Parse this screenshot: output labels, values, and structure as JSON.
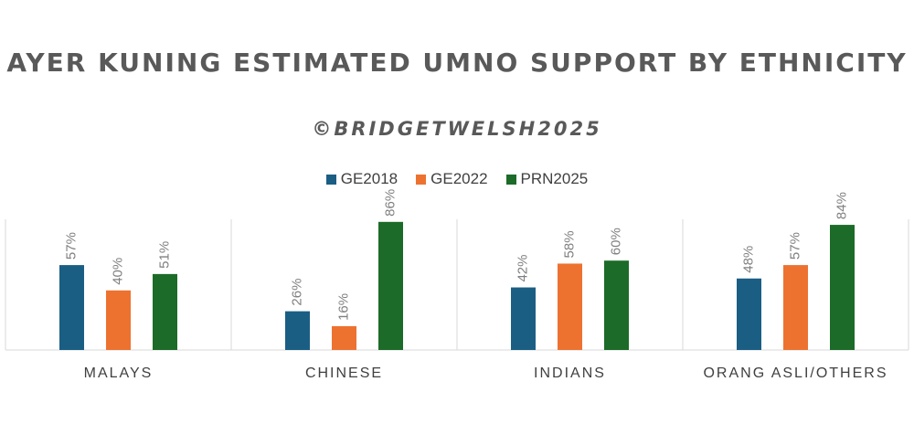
{
  "chart_data": {
    "type": "bar",
    "title": "AYER KUNING ESTIMATED UMNO SUPPORT BY ETHNICITY",
    "subtitle": "©BRIDGETWELSH2025",
    "categories": [
      "MALAYS",
      "CHINESE",
      "INDIANS",
      "ORANG ASLI/OTHERS"
    ],
    "series": [
      {
        "name": "GE2018",
        "color": "#1b5e84",
        "values": [
          57,
          26,
          42,
          48
        ],
        "labels": [
          "57%",
          "26%",
          "42%",
          "48%"
        ]
      },
      {
        "name": "GE2022",
        "color": "#ed7230",
        "values": [
          40,
          16,
          58,
          57
        ],
        "labels": [
          "40%",
          "16%",
          "58%",
          "57%"
        ]
      },
      {
        "name": "PRN2025",
        "color": "#1c6b28",
        "values": [
          51,
          86,
          60,
          84
        ],
        "labels": [
          "51%",
          "86%",
          "60%",
          "84%"
        ]
      }
    ],
    "ylim": [
      0,
      100
    ],
    "grid": false,
    "legend": "top-center"
  }
}
